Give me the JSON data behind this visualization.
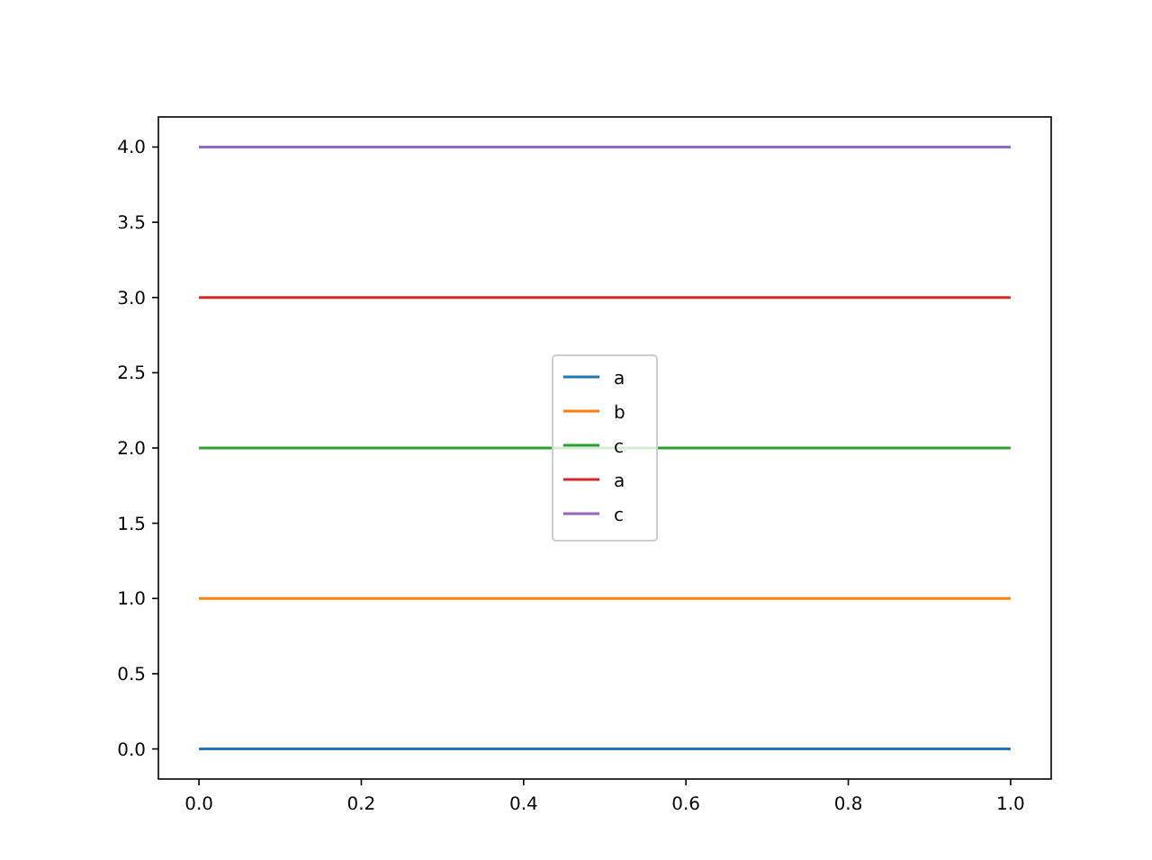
{
  "chart_data": {
    "type": "line",
    "x": [
      0,
      1
    ],
    "series": [
      {
        "name": "a",
        "color": "#1f77b4",
        "values": [
          0,
          0
        ]
      },
      {
        "name": "b",
        "color": "#ff7f0e",
        "values": [
          1,
          1
        ]
      },
      {
        "name": "c",
        "color": "#2ca02c",
        "values": [
          2,
          2
        ]
      },
      {
        "name": "a",
        "color": "#d62728",
        "values": [
          3,
          3
        ]
      },
      {
        "name": "c",
        "color": "#9467bd",
        "values": [
          4,
          4
        ]
      }
    ],
    "xlim": [
      -0.05,
      1.05
    ],
    "xticks": [
      {
        "value": 0,
        "label": "0.0"
      },
      {
        "value": 0.2,
        "label": "0.2"
      },
      {
        "value": 0.4,
        "label": "0.4"
      },
      {
        "value": 0.6,
        "label": "0.6"
      },
      {
        "value": 0.8,
        "label": "0.8"
      },
      {
        "value": 1,
        "label": "1.0"
      }
    ],
    "ylim": [
      -0.2,
      4.2
    ],
    "yticks": [
      {
        "value": 0,
        "label": "0.0"
      },
      {
        "value": 0.5,
        "label": "0.5"
      },
      {
        "value": 1,
        "label": "1.0"
      },
      {
        "value": 1.5,
        "label": "1.5"
      },
      {
        "value": 2,
        "label": "2.0"
      },
      {
        "value": 2.5,
        "label": "2.5"
      },
      {
        "value": 3,
        "label": "3.0"
      },
      {
        "value": 3.5,
        "label": "3.5"
      },
      {
        "value": 4,
        "label": "4.0"
      }
    ],
    "grid": false,
    "legend": "center"
  }
}
